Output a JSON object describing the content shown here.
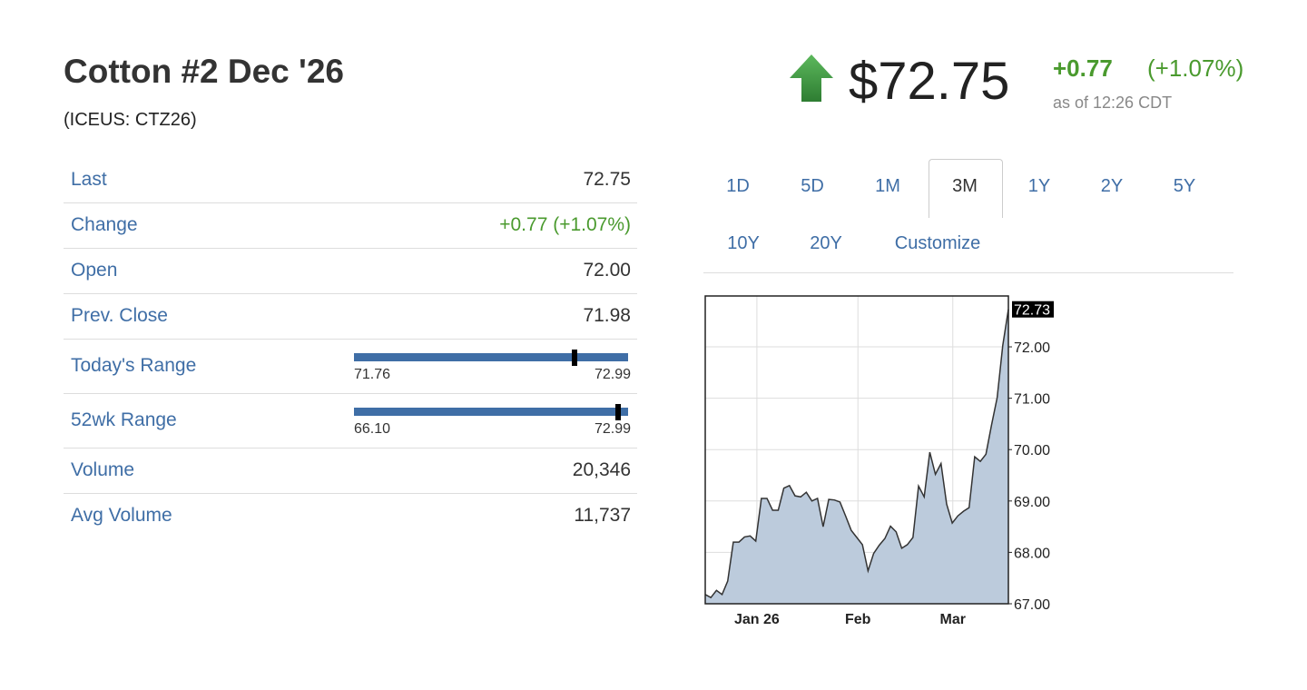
{
  "header": {
    "title": "Cotton #2 Dec '26",
    "symbol": "(ICEUS: CTZ26)",
    "price": "$72.75",
    "change": "+0.77",
    "change_pct": "(+1.07%)",
    "as_of": "as of 12:26 CDT"
  },
  "table": {
    "rows": [
      {
        "label": "Last",
        "value": "72.75"
      },
      {
        "label": "Change",
        "value": "+0.77 (+1.07%)"
      },
      {
        "label": "Open",
        "value": "72.00"
      },
      {
        "label": "Prev. Close",
        "value": "71.98"
      },
      {
        "label": "Today's Range",
        "low": {
          "value": 71.76,
          "label": "71.76"
        },
        "high": {
          "value": 72.99,
          "label": "72.99"
        },
        "marker": 72.75
      },
      {
        "label": "52wk Range",
        "low": {
          "value": 66.1,
          "label": "66.10"
        },
        "high": {
          "value": 72.99,
          "label": "72.99"
        },
        "marker": 72.75
      },
      {
        "label": "Volume",
        "value": "20,346"
      },
      {
        "label": "Avg Volume",
        "value": "11,737"
      }
    ]
  },
  "tabs": {
    "row1": [
      "1D",
      "5D",
      "1M",
      "3M",
      "1Y",
      "2Y",
      "5Y"
    ],
    "row2": [
      "10Y",
      "20Y",
      "Customize"
    ],
    "active": "3M"
  },
  "chart_data": {
    "type": "area",
    "color": "#bccbdc",
    "line_color": "#333333",
    "values": [
      67.18,
      67.12,
      67.26,
      67.18,
      67.44,
      68.2,
      68.2,
      68.3,
      68.32,
      68.22,
      69.05,
      69.05,
      68.82,
      68.82,
      69.25,
      69.3,
      69.1,
      69.08,
      69.17,
      69.0,
      69.05,
      68.5,
      69.03,
      69.02,
      68.98,
      68.71,
      68.43,
      68.29,
      68.15,
      67.64,
      67.98,
      68.14,
      68.27,
      68.51,
      68.4,
      68.08,
      68.15,
      68.29,
      69.29,
      69.08,
      69.95,
      69.52,
      69.73,
      68.94,
      68.57,
      68.71,
      68.8,
      68.87,
      69.86,
      69.77,
      69.91,
      70.48,
      71.01,
      72.03,
      72.73
    ],
    "xlim": [
      0,
      54
    ],
    "xticks": [
      {
        "value": 9.2,
        "label": "Jan 26"
      },
      {
        "value": 27.2,
        "label": "Feb"
      },
      {
        "value": 44.1,
        "label": "Mar"
      }
    ],
    "ylim": [
      67,
      72.99
    ],
    "yticks": [
      {
        "value": 67,
        "label": "67.00"
      },
      {
        "value": 68,
        "label": "68.00"
      },
      {
        "value": 69,
        "label": "69.00"
      },
      {
        "value": 70,
        "label": "70.00"
      },
      {
        "value": 71,
        "label": "71.00"
      },
      {
        "value": 72,
        "label": "72.00"
      }
    ],
    "grid": true
  }
}
